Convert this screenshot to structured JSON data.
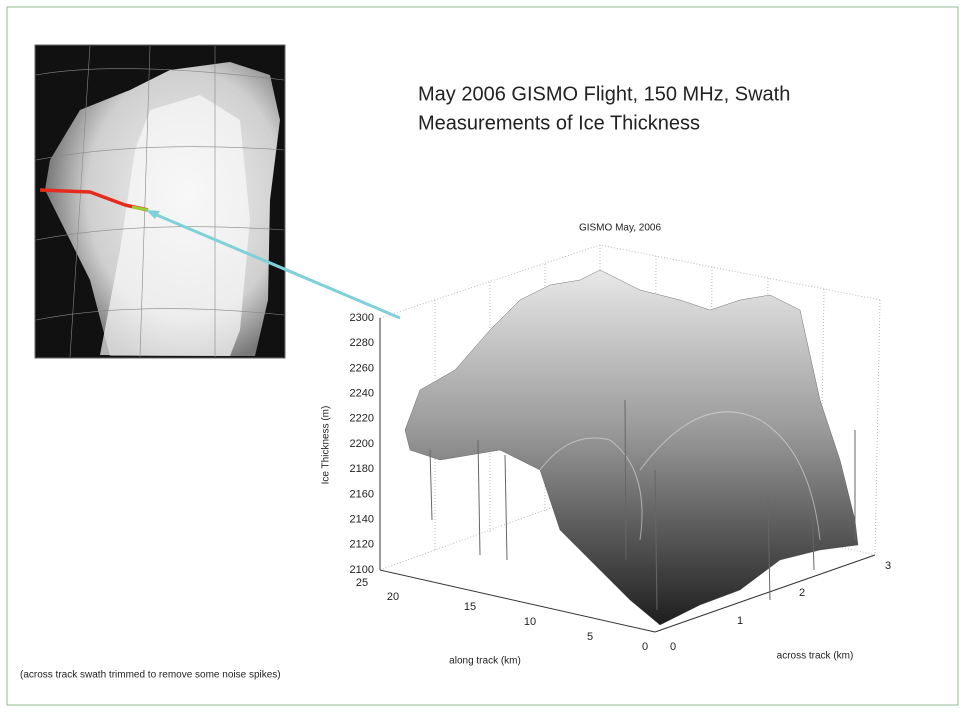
{
  "slide": {
    "title_lines": [
      "May 2006 GISMO Flight, 150 MHz, Swath",
      "Measurements of Ice Thickness"
    ],
    "caption": "(across track swath trimmed to remove some noise spikes)",
    "plot": {
      "title": "GISMO May, 2006",
      "z_label": "Ice Thickness (m)",
      "along_label": "along track (km)",
      "across_label": "across track (km)",
      "z_ticks": [
        2300,
        2280,
        2260,
        2240,
        2220,
        2200,
        2180,
        2160,
        2140,
        2120,
        2100
      ],
      "along_ticks": [
        25,
        20,
        15,
        10,
        5,
        0
      ],
      "across_ticks": [
        0,
        1,
        2,
        3
      ]
    }
  }
}
